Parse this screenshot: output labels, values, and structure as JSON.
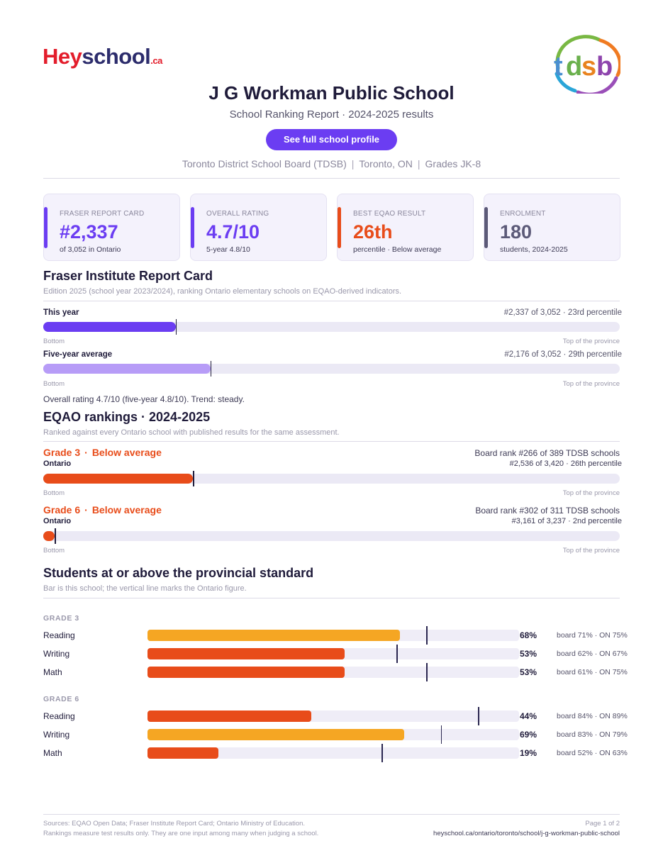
{
  "header": {
    "logo": {
      "hey": "Hey",
      "school": "school",
      "ca": ".ca"
    },
    "tdsb_logo": {
      "t": "t",
      "d": "d",
      "s": "s",
      "b": "b"
    },
    "title": "J G Workman Public School",
    "subtitle": "School Ranking Report  ·  2024-2025 results",
    "profile_button": "See full school profile",
    "board": "Toronto District School Board (TDSB)",
    "city": "Toronto, ON",
    "grades": "Grades JK-8",
    "sep": "|"
  },
  "cards": [
    {
      "label": "FRASER REPORT CARD",
      "value": "#2,337",
      "sub": "of 3,052 in Ontario",
      "color": "#6b3df2"
    },
    {
      "label": "OVERALL RATING",
      "value": "4.7/10",
      "sub": "5-year 4.8/10",
      "color": "#6b3df2"
    },
    {
      "label": "BEST EQAO RESULT",
      "value": "26th",
      "sub": "percentile  ·  Below average",
      "color": "#e84c1a"
    },
    {
      "label": "ENROLMENT",
      "value": "180",
      "sub": "students, 2024-2025",
      "color": "#5c5a78"
    }
  ],
  "fraser": {
    "heading": "Fraser Institute Report Card",
    "description": "Edition 2025 (school year 2023/2024), ranking Ontario elementary schools on EQAO-derived indicators.",
    "bars": [
      {
        "label": "This year",
        "right": "#2,337 of 3,052  ·  23rd percentile",
        "percentile": 23,
        "color": "#6b3df2"
      },
      {
        "label": "Five-year average",
        "right": "#2,176 of 3,052  ·  29th percentile",
        "percentile": 29,
        "color": "#b79cf7"
      }
    ],
    "axis_left": "Bottom",
    "axis_right": "Top of the province",
    "note": "Overall rating 4.7/10 (five-year 4.8/10). Trend: steady."
  },
  "eqao": {
    "heading": "EQAO rankings  ·  2024-2025",
    "description": "Ranked against every Ontario school with published results for the same assessment.",
    "grades": [
      {
        "grade": "Grade 3",
        "status": "Below average",
        "dot": "·",
        "scope": "Ontario",
        "board_rank": "Board rank #266 of 389 TDSB schools",
        "ontario_rank": "#2,536 of 3,420  ·  26th percentile",
        "percentile": 26,
        "color": "#e84c1a"
      },
      {
        "grade": "Grade 6",
        "status": "Below average",
        "dot": "·",
        "scope": "Ontario",
        "board_rank": "Board rank #302 of 311 TDSB schools",
        "ontario_rank": "#3,161 of 3,237  ·  2nd percentile",
        "percentile": 2,
        "color": "#e84c1a"
      }
    ],
    "axis_left": "Bottom",
    "axis_right": "Top of the province"
  },
  "standard": {
    "heading": "Students at or above the provincial standard",
    "description": "Bar is this school; the vertical line marks the Ontario figure.",
    "groups": [
      {
        "name": "GRADE 3",
        "rows": [
          {
            "subject": "Reading",
            "school": 68,
            "pct": "68%",
            "board": 71,
            "ontario": 75,
            "cmp": "board 71%  ·  ON 75%",
            "color": "#f5a623"
          },
          {
            "subject": "Writing",
            "school": 53,
            "pct": "53%",
            "board": 62,
            "ontario": 67,
            "cmp": "board 62%  ·  ON 67%",
            "color": "#e84c1a"
          },
          {
            "subject": "Math",
            "school": 53,
            "pct": "53%",
            "board": 61,
            "ontario": 75,
            "cmp": "board 61%  ·  ON 75%",
            "color": "#e84c1a"
          }
        ]
      },
      {
        "name": "GRADE 6",
        "rows": [
          {
            "subject": "Reading",
            "school": 44,
            "pct": "44%",
            "board": 84,
            "ontario": 89,
            "cmp": "board 84%  ·  ON 89%",
            "color": "#e84c1a"
          },
          {
            "subject": "Writing",
            "school": 69,
            "pct": "69%",
            "board": 83,
            "ontario": 79,
            "cmp": "board 83%  ·  ON 79%",
            "color": "#f5a623"
          },
          {
            "subject": "Math",
            "school": 19,
            "pct": "19%",
            "board": 52,
            "ontario": 63,
            "cmp": "board 52%  ·  ON 63%",
            "color": "#e84c1a"
          }
        ]
      }
    ]
  },
  "footer": {
    "sources": "Sources: EQAO Open Data; Fraser Institute Report Card; Ontario Ministry of Education.",
    "disclaimer": "Rankings measure test results only. They are one input among many when judging a school.",
    "page": "Page 1 of 2",
    "url": "heyschool.ca/ontario/toronto/school/j-g-workman-public-school"
  }
}
